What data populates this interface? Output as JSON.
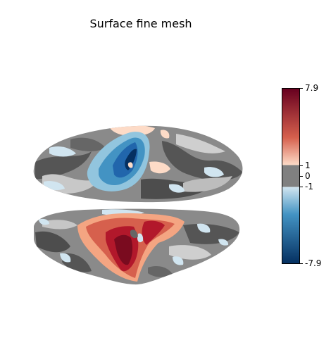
{
  "figure": {
    "title": "Surface fine mesh"
  },
  "colorbar": {
    "colormap": "RdBu_r",
    "vmin": -7.9,
    "vmax": 7.9,
    "threshold": 1,
    "tick_labels": [
      "7.9",
      "1",
      "0",
      "-1",
      "-7.9"
    ],
    "colors": {
      "top": "#67001f",
      "upper_mid": "#d6604d",
      "upper_light": "#fddbc7",
      "threshold_gray": "#808080",
      "lower_light": "#d1e5f0",
      "lower_mid": "#4393c3",
      "bottom": "#053061"
    }
  },
  "colors": {
    "surface_dark": "#5a5a5a",
    "surface_mid": "#8a8a8a",
    "surface_light": "#c4c4c4",
    "activation_red": "#b2182b",
    "activation_dark_red": "#7a0b1f",
    "activation_light_red": "#f4a582",
    "activation_blue": "#2166ac",
    "activation_light_blue": "#92c5de",
    "activation_pale_blue": "#d1e5f0"
  }
}
